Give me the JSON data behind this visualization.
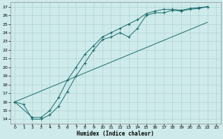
{
  "xlabel": "Humidex (Indice chaleur)",
  "bg_color": "#ceeaea",
  "grid_color": "#aacfcf",
  "line_color": "#1a6b6b",
  "xlim": [
    -0.5,
    23.5
  ],
  "ylim": [
    13.5,
    27.5
  ],
  "xticks": [
    0,
    1,
    2,
    3,
    4,
    5,
    6,
    7,
    8,
    9,
    10,
    11,
    12,
    13,
    14,
    15,
    16,
    17,
    18,
    19,
    20,
    21,
    22,
    23
  ],
  "yticks": [
    14,
    15,
    16,
    17,
    18,
    19,
    20,
    21,
    22,
    23,
    24,
    25,
    26,
    27
  ],
  "line1_x": [
    0,
    1,
    2,
    3,
    4,
    5,
    6,
    7,
    8,
    9,
    10,
    11,
    12,
    13,
    14,
    15,
    16,
    17,
    18,
    19,
    20,
    21,
    22
  ],
  "line1_y": [
    16.0,
    15.7,
    14.0,
    14.0,
    14.5,
    15.5,
    17.2,
    19.0,
    20.5,
    22.0,
    23.2,
    23.5,
    24.0,
    23.5,
    24.5,
    26.0,
    26.3,
    26.3,
    26.6,
    26.5,
    26.7,
    26.8,
    27.0
  ],
  "line2_x": [
    0,
    2,
    3,
    4,
    5,
    6,
    7,
    8,
    9,
    10,
    11,
    12,
    13,
    14,
    15,
    16,
    17,
    18,
    19,
    20,
    21,
    22
  ],
  "line2_y": [
    16.0,
    14.2,
    14.2,
    15.0,
    16.5,
    18.5,
    20.0,
    21.5,
    22.5,
    23.5,
    24.0,
    24.5,
    25.0,
    25.5,
    26.2,
    26.5,
    26.7,
    26.7,
    26.6,
    26.8,
    26.9,
    27.0
  ],
  "line3_x": [
    0,
    22
  ],
  "line3_y": [
    16.0,
    25.2
  ]
}
